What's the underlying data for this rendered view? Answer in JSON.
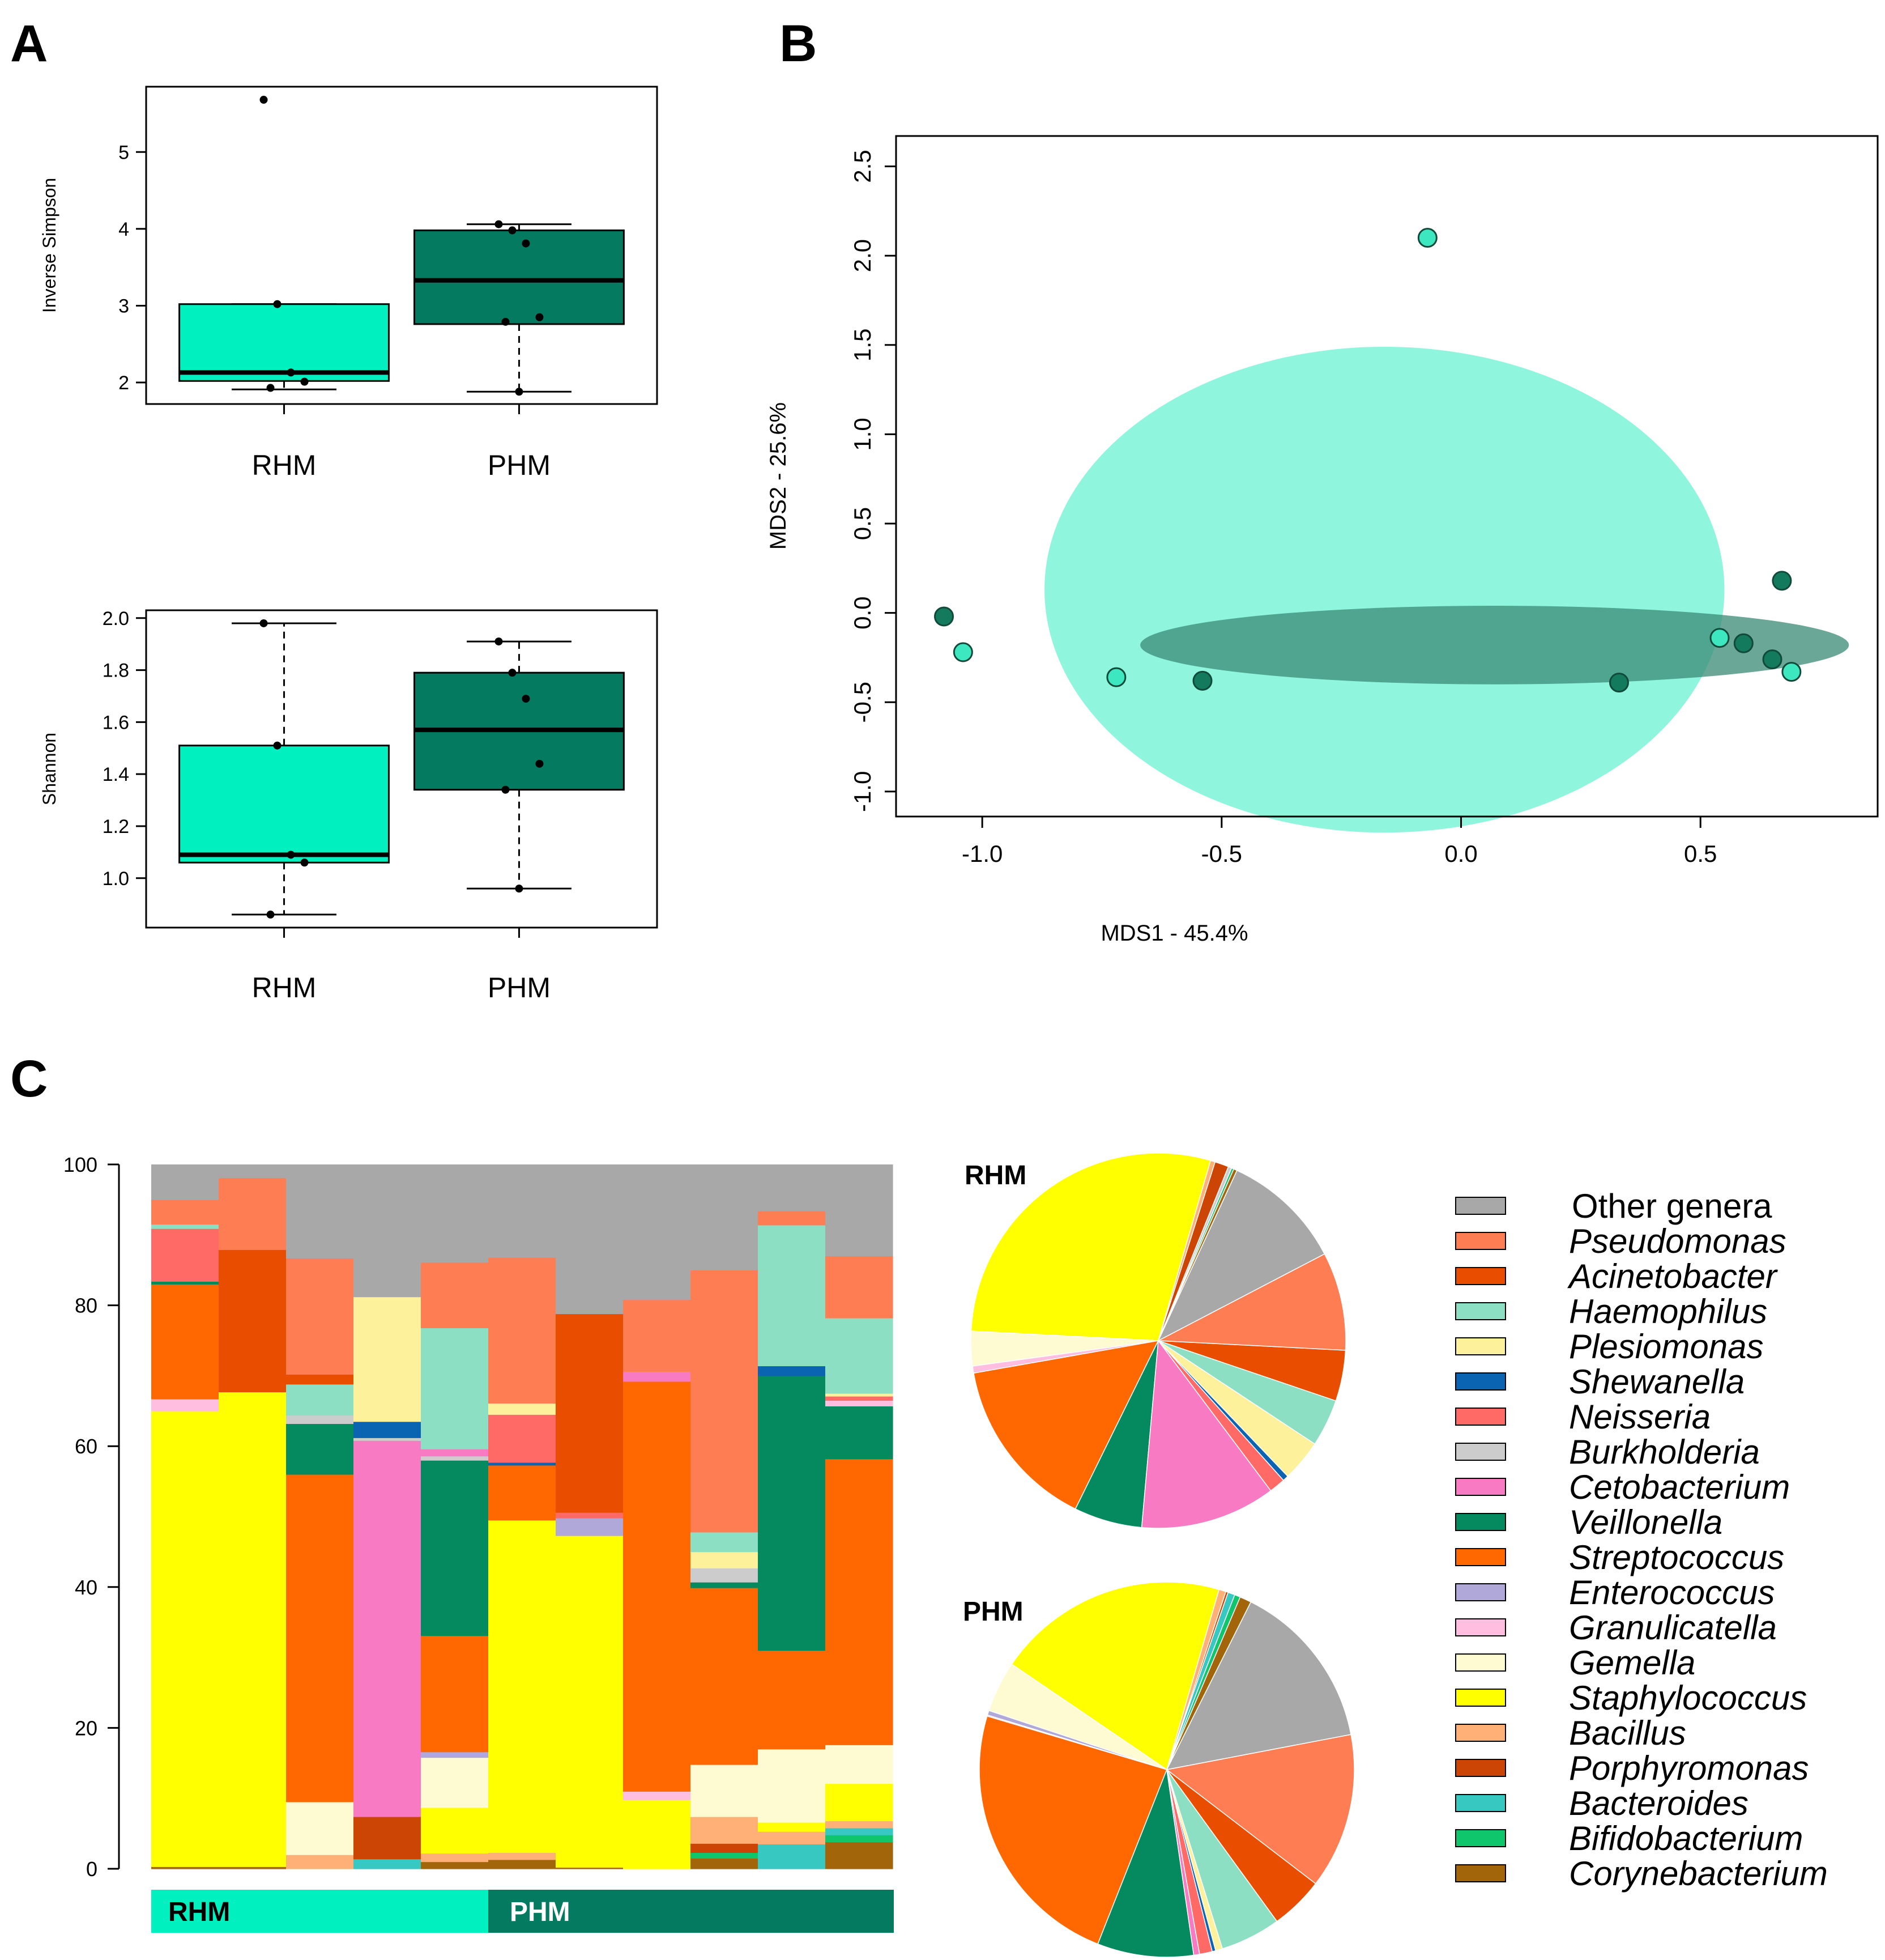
{
  "panels": {
    "a": "A",
    "b": "B",
    "c": "C"
  },
  "colors": {
    "rhm": "#00f0c0",
    "phm": "#047a60",
    "rhm_pt": "#3de8c0",
    "phm_pt": "#137a5e",
    "ellipse_rhm": "#8ff5dd",
    "ellipse_phm": "#3a8a74"
  },
  "chart_data": [
    {
      "id": "inverse-simpson",
      "type": "box",
      "title": "",
      "ylabel": "Inverse Simpson",
      "ylim": [
        1.72,
        5.85
      ],
      "yticks": [
        2,
        3,
        4,
        5
      ],
      "categories": [
        "RHM",
        "PHM"
      ],
      "boxes": [
        {
          "name": "RHM",
          "min": 1.91,
          "q1": 2.02,
          "median": 2.13,
          "q3": 3.02,
          "max": 3.02,
          "points": [
            5.68,
            3.02,
            2.13,
            2.01,
            1.93
          ]
        },
        {
          "name": "PHM",
          "min": 1.88,
          "q1": 2.76,
          "median": 3.33,
          "q3": 3.98,
          "max": 4.06,
          "points": [
            4.06,
            3.98,
            3.81,
            2.85,
            2.79,
            1.88
          ]
        }
      ]
    },
    {
      "id": "shannon",
      "type": "box",
      "title": "",
      "ylabel": "Shannon",
      "ylim": [
        0.81,
        2.03
      ],
      "yticks": [
        "1.0",
        "1.2",
        "1.4",
        "1.6",
        "1.8",
        "2.0"
      ],
      "categories": [
        "RHM",
        "PHM"
      ],
      "boxes": [
        {
          "name": "RHM",
          "min": 0.86,
          "q1": 1.06,
          "median": 1.09,
          "q3": 1.51,
          "max": 1.98,
          "points": [
            1.98,
            1.51,
            1.09,
            1.06,
            0.86
          ]
        },
        {
          "name": "PHM",
          "min": 0.96,
          "q1": 1.34,
          "median": 1.57,
          "q3": 1.79,
          "max": 1.91,
          "points": [
            1.91,
            1.79,
            1.69,
            1.44,
            1.34,
            0.96
          ]
        }
      ]
    },
    {
      "id": "mds",
      "type": "scatter",
      "title": "",
      "xlabel": "MDS1 - 45.4%",
      "ylabel": "MDS2 - 25.6%",
      "xlim": [
        -1.18,
        0.87
      ],
      "ylim": [
        -1.14,
        2.67
      ],
      "xticks": [
        "-1.0",
        "-0.5",
        "0.0",
        "0.5"
      ],
      "yticks": [
        "-1.0",
        "-0.5",
        "0.0",
        "0.5",
        "1.0",
        "1.5",
        "2.0",
        "2.5"
      ],
      "series": [
        {
          "name": "RHM",
          "points": [
            [
              -1.04,
              -0.22
            ],
            [
              -0.72,
              -0.36
            ],
            [
              -0.07,
              2.1
            ],
            [
              0.54,
              -0.14
            ],
            [
              0.69,
              -0.33
            ]
          ],
          "ellipse": {
            "cx": -0.16,
            "cy": 0.13,
            "rx": 0.71,
            "ry": 1.36
          }
        },
        {
          "name": "PHM",
          "points": [
            [
              -1.08,
              -0.02
            ],
            [
              -0.54,
              -0.38
            ],
            [
              0.33,
              -0.39
            ],
            [
              0.59,
              -0.17
            ],
            [
              0.65,
              -0.26
            ],
            [
              0.67,
              0.18
            ]
          ],
          "ellipse": {
            "cx": 0.07,
            "cy": -0.18,
            "rx": 0.74,
            "ry": 0.22
          }
        }
      ]
    },
    {
      "id": "stacked-bars",
      "type": "bar",
      "stacked": true,
      "title": "",
      "ylim": [
        0,
        100
      ],
      "yticks": [
        0,
        20,
        40,
        60,
        80,
        100
      ],
      "group_labels": [
        "RHM",
        "PHM"
      ],
      "group_sizes": [
        5,
        6
      ],
      "genera": [
        "Other genera",
        "Pseudomonas",
        "Acinetobacter",
        "Haemophilus",
        "Plesiomonas",
        "Shewanella",
        "Neisseria",
        "Burkholderia",
        "Cetobacterium",
        "Veillonella",
        "Streptococcus",
        "Enterococcus",
        "Granulicatella",
        "Gemella",
        "Staphylococcus",
        "Bacillus",
        "Porphyromonas",
        "Bacteroides",
        "Bifidobacterium",
        "Corynebacterium"
      ],
      "genus_colors": [
        "#a8a8a8",
        "#ff7d52",
        "#e94e00",
        "#8ddfc4",
        "#fdf19c",
        "#0a64b2",
        "#ff6966",
        "#cccccc",
        "#f77ac2",
        "#05895e",
        "#ff6700",
        "#afa8d8",
        "#ffbde0",
        "#fefbd3",
        "#ffff00",
        "#ffb077",
        "#cd4504",
        "#36c8c1",
        "#0fc66c",
        "#a3650a"
      ],
      "samples": [
        [
          [
            "Corynebacterium",
            0.3
          ],
          [
            "Staphylococcus",
            64.7
          ],
          [
            "Granulicatella",
            1.7
          ],
          [
            "Streptococcus",
            16.3
          ],
          [
            "Veillonella",
            0.4
          ],
          [
            "Neisseria",
            7.5
          ],
          [
            "Haemophilus",
            0.6
          ],
          [
            "Pseudomonas",
            3.5
          ],
          [
            "Other genera",
            5.0
          ]
        ],
        [
          [
            "Corynebacterium",
            0.3
          ],
          [
            "Staphylococcus",
            67.4
          ],
          [
            "Acinetobacter",
            20.2
          ],
          [
            "Pseudomonas",
            10.2
          ],
          [
            "Other genera",
            1.9
          ]
        ],
        [
          [
            "Bacillus",
            2.0
          ],
          [
            "Gemella",
            7.5
          ],
          [
            "Streptococcus",
            46.5
          ],
          [
            "Veillonella",
            7.2
          ],
          [
            "Burkholderia",
            1.2
          ],
          [
            "Haemophilus",
            4.4
          ],
          [
            "Acinetobacter",
            1.4
          ],
          [
            "Pseudomonas",
            16.5
          ],
          [
            "Other genera",
            13.3
          ]
        ],
        [
          [
            "Bacteroides",
            1.4
          ],
          [
            "Porphyromonas",
            6.0
          ],
          [
            "Cetobacterium",
            53.4
          ],
          [
            "Burkholderia",
            0.4
          ],
          [
            "Shewanella",
            2.3
          ],
          [
            "Plesiomonas",
            17.7
          ],
          [
            "Other genera",
            18.8
          ]
        ],
        [
          [
            "Corynebacterium",
            1.0
          ],
          [
            "Bacillus",
            1.2
          ],
          [
            "Staphylococcus",
            6.5
          ],
          [
            "Gemella",
            7.1
          ],
          [
            "Enterococcus",
            0.8
          ],
          [
            "Streptococcus",
            16.5
          ],
          [
            "Veillonella",
            24.9
          ],
          [
            "Burkholderia",
            0.6
          ],
          [
            "Cetobacterium",
            1.0
          ],
          [
            "Haemophilus",
            17.2
          ],
          [
            "Pseudomonas",
            9.3
          ],
          [
            "Other genera",
            13.9
          ]
        ],
        [
          [
            "Corynebacterium",
            1.3
          ],
          [
            "Bacillus",
            1.0
          ],
          [
            "Staphylococcus",
            47.2
          ],
          [
            "Streptococcus",
            7.8
          ],
          [
            "Shewanella",
            0.4
          ],
          [
            "Neisseria",
            6.8
          ],
          [
            "Plesiomonas",
            1.6
          ],
          [
            "Pseudomonas",
            20.7
          ],
          [
            "Other genera",
            13.2
          ]
        ],
        [
          [
            "Corynebacterium",
            0.2
          ],
          [
            "Staphylococcus",
            47.1
          ],
          [
            "Enterococcus",
            2.5
          ],
          [
            "Neisseria",
            0.8
          ],
          [
            "Acinetobacter",
            28.2
          ],
          [
            "Other genera",
            21.2
          ]
        ],
        [
          [
            "Staphylococcus",
            9.8
          ],
          [
            "Granulicatella",
            1.2
          ],
          [
            "Streptococcus",
            58.2
          ],
          [
            "Cetobacterium",
            1.4
          ],
          [
            "Pseudomonas",
            10.2
          ],
          [
            "Other genera",
            19.2
          ]
        ],
        [
          [
            "Corynebacterium",
            1.5
          ],
          [
            "Bifidobacterium",
            0.8
          ],
          [
            "Porphyromonas",
            1.3
          ],
          [
            "Bacillus",
            3.8
          ],
          [
            "Gemella",
            7.4
          ],
          [
            "Streptococcus",
            25.1
          ],
          [
            "Veillonella",
            0.8
          ],
          [
            "Burkholderia",
            2.0
          ],
          [
            "Plesiomonas",
            2.3
          ],
          [
            "Haemophilus",
            2.8
          ],
          [
            "Pseudomonas",
            37.2
          ],
          [
            "Other genera",
            15.0
          ]
        ],
        [
          [
            "Bacteroides",
            3.5
          ],
          [
            "Bacillus",
            1.8
          ],
          [
            "Staphylococcus",
            1.3
          ],
          [
            "Gemella",
            10.4
          ],
          [
            "Streptococcus",
            14.0
          ],
          [
            "Veillonella",
            39.0
          ],
          [
            "Shewanella",
            1.4
          ],
          [
            "Haemophilus",
            20.0
          ],
          [
            "Pseudomonas",
            2.0
          ],
          [
            "Other genera",
            6.6
          ]
        ],
        [
          [
            "Corynebacterium",
            3.8
          ],
          [
            "Bifidobacterium",
            1.0
          ],
          [
            "Bacteroides",
            1.0
          ],
          [
            "Bacillus",
            1.0
          ],
          [
            "Staphylococcus",
            5.3
          ],
          [
            "Gemella",
            5.5
          ],
          [
            "Streptococcus",
            40.6
          ],
          [
            "Veillonella",
            7.5
          ],
          [
            "Granulicatella",
            0.8
          ],
          [
            "Neisseria",
            0.6
          ],
          [
            "Plesiomonas",
            0.4
          ],
          [
            "Haemophilus",
            10.7
          ],
          [
            "Pseudomonas",
            8.8
          ],
          [
            "Other genera",
            13.0
          ]
        ]
      ]
    },
    {
      "id": "pie-rhm",
      "type": "pie",
      "title": "RHM",
      "slices": [
        [
          "Staphylococcus",
          28.8
        ],
        [
          "Gemella",
          3.0
        ],
        [
          "Granulicatella",
          0.6
        ],
        [
          "Streptococcus",
          15.0
        ],
        [
          "Veillonella",
          5.9
        ],
        [
          "Cetobacterium",
          11.7
        ],
        [
          "Neisseria",
          1.4
        ],
        [
          "Shewanella",
          0.5
        ],
        [
          "Plesiomonas",
          3.6
        ],
        [
          "Haemophilus",
          4.1
        ],
        [
          "Acinetobacter",
          4.4
        ],
        [
          "Pseudomonas",
          8.5
        ],
        [
          "Other genera",
          10.5
        ],
        [
          "Corynebacterium",
          0.3
        ],
        [
          "Bifidobacterium",
          0.2
        ],
        [
          "Burkholderia",
          0.3
        ],
        [
          "Porphyromonas",
          1.2
        ],
        [
          "Bacillus",
          0.4
        ]
      ]
    },
    {
      "id": "pie-phm",
      "type": "pie",
      "title": "PHM",
      "slices": [
        [
          "Staphylococcus",
          20.0
        ],
        [
          "Gemella",
          4.4
        ],
        [
          "Enterococcus",
          0.4
        ],
        [
          "Granulicatella",
          0.1
        ],
        [
          "Streptococcus",
          23.6
        ],
        [
          "Veillonella",
          8.3
        ],
        [
          "Cetobacterium",
          0.5
        ],
        [
          "Neisseria",
          1.1
        ],
        [
          "Shewanella",
          0.3
        ],
        [
          "Plesiomonas",
          0.6
        ],
        [
          "Haemophilus",
          5.2
        ],
        [
          "Acinetobacter",
          4.6
        ],
        [
          "Pseudomonas",
          13.4
        ],
        [
          "Other genera",
          14.6
        ],
        [
          "Corynebacterium",
          1.0
        ],
        [
          "Bifidobacterium",
          0.5
        ],
        [
          "Bacteroides",
          0.6
        ],
        [
          "Porphyromonas",
          0.2
        ],
        [
          "Bacillus",
          0.6
        ]
      ]
    }
  ]
}
